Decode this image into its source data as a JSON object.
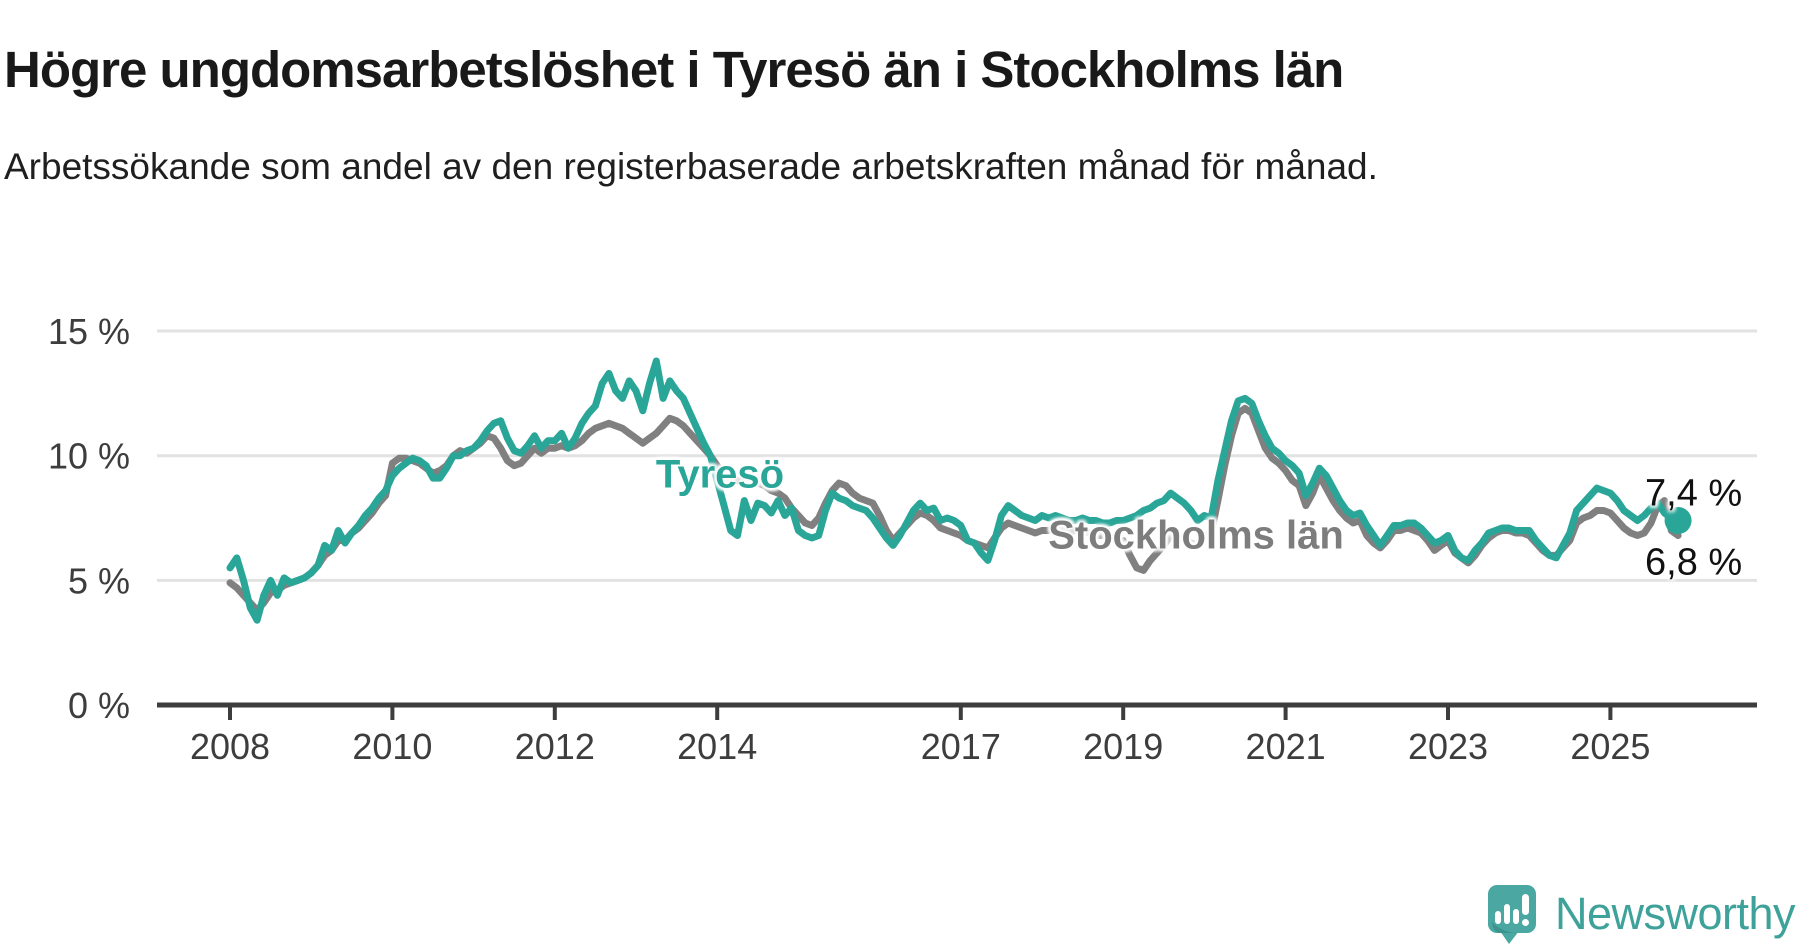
{
  "header": {
    "title": "Högre ungdomsarbetslöshet i Tyresö än i Stockholms län",
    "subtitle": "Arbetssökande som andel av den registerbaserade arbetskraften månad för månad."
  },
  "chart_data": {
    "type": "line",
    "unit": "%",
    "grid": "horizontal gridlines at 5, 10, 15",
    "legend_position": "inline labels on lines",
    "x_start_year": 2008,
    "x_start_month": 1,
    "x_end_year": 2025,
    "x_end_month": 11,
    "ylim": [
      0,
      15
    ],
    "y_ticks": [
      {
        "value": 0,
        "label": "0 %"
      },
      {
        "value": 5,
        "label": "5 %"
      },
      {
        "value": 10,
        "label": "10 %"
      },
      {
        "value": 15,
        "label": "15 %"
      }
    ],
    "x_ticks": [
      {
        "year": 2008,
        "label": "2008"
      },
      {
        "year": 2010,
        "label": "2010"
      },
      {
        "year": 2012,
        "label": "2012"
      },
      {
        "year": 2014,
        "label": "2014"
      },
      {
        "year": 2017,
        "label": "2017"
      },
      {
        "year": 2019,
        "label": "2019"
      },
      {
        "year": 2021,
        "label": "2021"
      },
      {
        "year": 2023,
        "label": "2023"
      },
      {
        "year": 2025,
        "label": "2025"
      }
    ],
    "series": [
      {
        "name": "Stockholms län",
        "color": "#808080",
        "end_label": "6,8 %",
        "end_value": 6.8,
        "end_dot": false,
        "values": [
          4.9,
          4.7,
          4.4,
          4.1,
          3.8,
          4.1,
          4.5,
          4.6,
          4.8,
          4.9,
          5.0,
          5.1,
          5.3,
          5.6,
          6.0,
          6.2,
          6.6,
          6.6,
          6.9,
          7.1,
          7.4,
          7.7,
          8.1,
          8.4,
          9.7,
          9.9,
          9.9,
          9.8,
          9.7,
          9.5,
          9.3,
          9.4,
          9.6,
          10.0,
          10.2,
          10.1,
          10.3,
          10.5,
          10.8,
          10.7,
          10.3,
          9.8,
          9.6,
          9.7,
          10.0,
          10.3,
          10.1,
          10.3,
          10.3,
          10.4,
          10.3,
          10.4,
          10.6,
          10.9,
          11.1,
          11.2,
          11.3,
          11.2,
          11.1,
          10.9,
          10.7,
          10.5,
          10.7,
          10.9,
          11.2,
          11.5,
          11.4,
          11.2,
          10.9,
          10.6,
          10.3,
          10.0,
          9.6,
          9.3,
          9.0,
          9.0,
          9.0,
          8.9,
          8.9,
          8.8,
          8.6,
          8.5,
          8.3,
          7.9,
          7.6,
          7.3,
          7.2,
          7.5,
          8.1,
          8.6,
          8.9,
          8.8,
          8.5,
          8.3,
          8.2,
          8.1,
          7.6,
          7.0,
          6.6,
          6.9,
          7.2,
          7.5,
          7.7,
          7.6,
          7.4,
          7.1,
          7.0,
          6.9,
          6.8,
          6.6,
          6.5,
          6.4,
          6.3,
          6.7,
          7.1,
          7.3,
          7.2,
          7.1,
          7.0,
          6.9,
          7.0,
          7.0,
          7.1,
          7.0,
          6.9,
          7.0,
          7.0,
          6.9,
          6.8,
          6.8,
          6.7,
          6.6,
          6.6,
          6.0,
          5.5,
          5.4,
          5.8,
          6.1,
          6.4,
          6.8,
          6.7,
          6.7,
          6.5,
          6.4,
          6.8,
          6.9,
          8.2,
          9.6,
          10.8,
          11.7,
          11.9,
          11.7,
          11.0,
          10.3,
          9.9,
          9.7,
          9.4,
          9.0,
          8.8,
          8.0,
          8.5,
          9.2,
          8.7,
          8.2,
          7.8,
          7.5,
          7.3,
          7.4,
          6.8,
          6.5,
          6.3,
          6.6,
          7.0,
          7.0,
          7.1,
          7.0,
          6.9,
          6.6,
          6.2,
          6.4,
          6.6,
          6.1,
          5.9,
          5.7,
          6.0,
          6.4,
          6.7,
          6.9,
          7.0,
          7.0,
          6.9,
          6.9,
          6.8,
          6.5,
          6.2,
          6.0,
          6.0,
          6.3,
          6.6,
          7.3,
          7.5,
          7.6,
          7.8,
          7.8,
          7.7,
          7.4,
          7.1,
          6.9,
          6.8,
          6.9,
          7.3,
          8.0,
          8.2,
          7.0,
          6.8
        ]
      },
      {
        "name": "Tyresö",
        "color": "#2aa699",
        "end_label": "7,4 %",
        "end_value": 7.4,
        "end_dot": true,
        "values": [
          5.5,
          5.9,
          5.0,
          3.9,
          3.4,
          4.4,
          5.0,
          4.4,
          5.1,
          4.9,
          5.0,
          5.1,
          5.3,
          5.6,
          6.4,
          6.2,
          7.0,
          6.5,
          6.9,
          7.2,
          7.6,
          7.9,
          8.3,
          8.6,
          9.2,
          9.5,
          9.7,
          9.9,
          9.8,
          9.6,
          9.1,
          9.1,
          9.5,
          10.0,
          10.0,
          10.2,
          10.3,
          10.6,
          11.0,
          11.3,
          11.4,
          10.7,
          10.2,
          10.1,
          10.4,
          10.8,
          10.3,
          10.6,
          10.6,
          10.9,
          10.3,
          10.7,
          11.3,
          11.7,
          12.0,
          12.9,
          13.3,
          12.6,
          12.3,
          13.0,
          12.6,
          11.8,
          12.9,
          13.8,
          12.3,
          13.0,
          12.6,
          12.3,
          11.7,
          11.1,
          10.5,
          10.0,
          9.0,
          8.0,
          7.0,
          6.8,
          8.2,
          7.4,
          8.1,
          8.0,
          7.7,
          8.2,
          7.6,
          7.9,
          7.0,
          6.8,
          6.7,
          6.8,
          7.8,
          8.5,
          8.3,
          8.2,
          8.0,
          7.9,
          7.8,
          7.5,
          7.1,
          6.7,
          6.4,
          6.8,
          7.3,
          7.8,
          8.1,
          7.8,
          7.9,
          7.4,
          7.5,
          7.4,
          7.2,
          6.6,
          6.5,
          6.1,
          5.8,
          6.6,
          7.6,
          8.0,
          7.8,
          7.6,
          7.5,
          7.4,
          7.6,
          7.5,
          7.6,
          7.5,
          7.4,
          7.4,
          7.5,
          7.4,
          7.4,
          7.3,
          7.3,
          7.4,
          7.4,
          7.5,
          7.6,
          7.8,
          7.9,
          8.1,
          8.2,
          8.5,
          8.3,
          8.1,
          7.8,
          7.4,
          7.6,
          7.5,
          9.0,
          10.2,
          11.4,
          12.2,
          12.3,
          12.1,
          11.4,
          10.8,
          10.3,
          10.1,
          9.8,
          9.6,
          9.3,
          8.4,
          8.9,
          9.5,
          9.2,
          8.7,
          8.2,
          7.8,
          7.6,
          7.7,
          7.2,
          6.8,
          6.4,
          6.8,
          7.2,
          7.2,
          7.3,
          7.3,
          7.1,
          6.8,
          6.5,
          6.6,
          6.8,
          6.2,
          5.9,
          5.8,
          6.2,
          6.5,
          6.9,
          7.0,
          7.1,
          7.1,
          7.0,
          7.0,
          7.0,
          6.6,
          6.3,
          6.0,
          5.9,
          6.4,
          6.9,
          7.8,
          8.1,
          8.4,
          8.7,
          8.6,
          8.5,
          8.2,
          7.8,
          7.6,
          7.4,
          7.6,
          7.9,
          8.1,
          7.7,
          7.5,
          7.4
        ]
      }
    ]
  },
  "logo": {
    "text": "Newsworthy",
    "icon": "newsworthy-speech-bubble-bar-chart-icon",
    "icon_color": "#4aa7a1",
    "text_color": "#3ea29b"
  }
}
